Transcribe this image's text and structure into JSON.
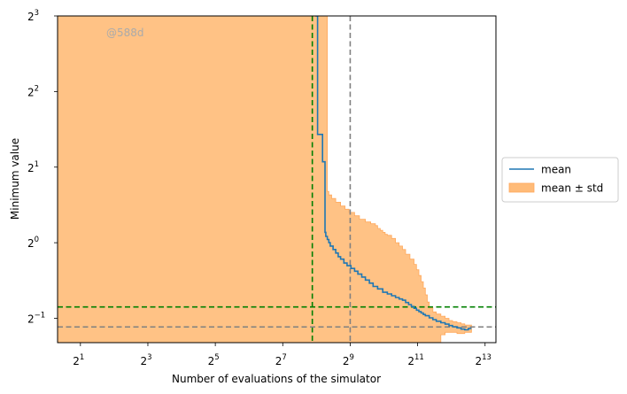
{
  "chart_data": {
    "type": "line",
    "xlabel": "Number of evaluations of the simulator",
    "ylabel": "Minimum value",
    "x_scale": "log2",
    "y_scale": "log2",
    "xlim": [
      1.25,
      10240
    ],
    "ylim": [
      0.4,
      8
    ],
    "x_ticks": [
      {
        "base": "2",
        "exp": "1",
        "value": 2
      },
      {
        "base": "2",
        "exp": "3",
        "value": 8
      },
      {
        "base": "2",
        "exp": "5",
        "value": 32
      },
      {
        "base": "2",
        "exp": "7",
        "value": 128
      },
      {
        "base": "2",
        "exp": "9",
        "value": 512
      },
      {
        "base": "2",
        "exp": "11",
        "value": 2048
      },
      {
        "base": "2",
        "exp": "13",
        "value": 8192
      }
    ],
    "y_ticks": [
      {
        "base": "2",
        "exp": "−1",
        "value": 0.5
      },
      {
        "base": "2",
        "exp": "0",
        "value": 1
      },
      {
        "base": "2",
        "exp": "1",
        "value": 2
      },
      {
        "base": "2",
        "exp": "2",
        "value": 4
      },
      {
        "base": "2",
        "exp": "3",
        "value": 8
      }
    ],
    "grid": false,
    "legend_position": "right-outside",
    "watermark": "@588d",
    "series": [
      {
        "name": "mean",
        "color": "#1f77b4",
        "x": [
          250,
          262,
          262,
          290,
          290,
          305,
          305,
          310,
          320,
          330,
          340,
          360,
          380,
          400,
          420,
          450,
          480,
          520,
          560,
          600,
          650,
          700,
          760,
          820,
          900,
          1000,
          1100,
          1200,
          1300,
          1400,
          1500,
          1600,
          1700,
          1800,
          1900,
          2000,
          2100,
          2200,
          2300,
          2400,
          2600,
          2800,
          3000,
          3300,
          3600,
          3900,
          4200,
          4600,
          5000,
          5400,
          5800,
          6200
        ],
        "y": [
          8,
          8,
          2.7,
          2.7,
          2.1,
          2.1,
          1.1,
          1.06,
          1.03,
          1.0,
          0.97,
          0.94,
          0.91,
          0.88,
          0.86,
          0.83,
          0.81,
          0.79,
          0.77,
          0.75,
          0.73,
          0.71,
          0.69,
          0.67,
          0.655,
          0.635,
          0.625,
          0.615,
          0.605,
          0.597,
          0.59,
          0.578,
          0.567,
          0.557,
          0.548,
          0.539,
          0.532,
          0.525,
          0.518,
          0.512,
          0.502,
          0.494,
          0.487,
          0.48,
          0.474,
          0.468,
          0.463,
          0.458,
          0.453,
          0.45,
          0.455,
          0.455
        ]
      },
      {
        "name": "mean ± std",
        "color": "#ffbb78",
        "x": [
          1.25,
          320,
          320,
          330,
          350,
          380,
          420,
          460,
          500,
          560,
          620,
          700,
          780,
          860,
          900,
          950,
          1000,
          1050,
          1100,
          1200,
          1300,
          1400,
          1500,
          1600,
          1750,
          1900,
          2000,
          2100,
          2200,
          2300,
          2400,
          2500,
          2600,
          2800,
          3000,
          3300,
          3600,
          3900,
          4200,
          4600,
          5000,
          5400,
          5800,
          6200
        ],
        "upper": [
          8,
          8,
          1.6,
          1.55,
          1.5,
          1.45,
          1.4,
          1.36,
          1.32,
          1.28,
          1.24,
          1.21,
          1.19,
          1.17,
          1.14,
          1.12,
          1.1,
          1.08,
          1.07,
          1.04,
          1.0,
          0.97,
          0.94,
          0.9,
          0.86,
          0.82,
          0.78,
          0.74,
          0.7,
          0.66,
          0.62,
          0.58,
          0.55,
          0.53,
          0.52,
          0.51,
          0.5,
          0.49,
          0.485,
          0.48,
          0.475,
          0.47,
          0.47,
          0.47
        ],
        "lower": [
          0.4,
          0.4,
          0.4,
          0.4,
          0.4,
          0.4,
          0.4,
          0.4,
          0.4,
          0.4,
          0.4,
          0.4,
          0.4,
          0.4,
          0.4,
          0.4,
          0.4,
          0.4,
          0.4,
          0.4,
          0.4,
          0.4,
          0.4,
          0.4,
          0.4,
          0.4,
          0.4,
          0.4,
          0.4,
          0.4,
          0.4,
          0.4,
          0.4,
          0.4,
          0.4,
          0.43,
          0.44,
          0.44,
          0.44,
          0.435,
          0.435,
          0.44,
          0.44,
          0.44
        ]
      }
    ],
    "reference_lines": [
      {
        "orientation": "vertical",
        "value": 235,
        "color": "#008000",
        "style": "dashed"
      },
      {
        "orientation": "vertical",
        "value": 512,
        "color": "#808080",
        "style": "dashed"
      },
      {
        "orientation": "horizontal",
        "value": 0.555,
        "color": "#008000",
        "style": "dashed"
      },
      {
        "orientation": "horizontal",
        "value": 0.462,
        "color": "#808080",
        "style": "dashed"
      }
    ]
  }
}
